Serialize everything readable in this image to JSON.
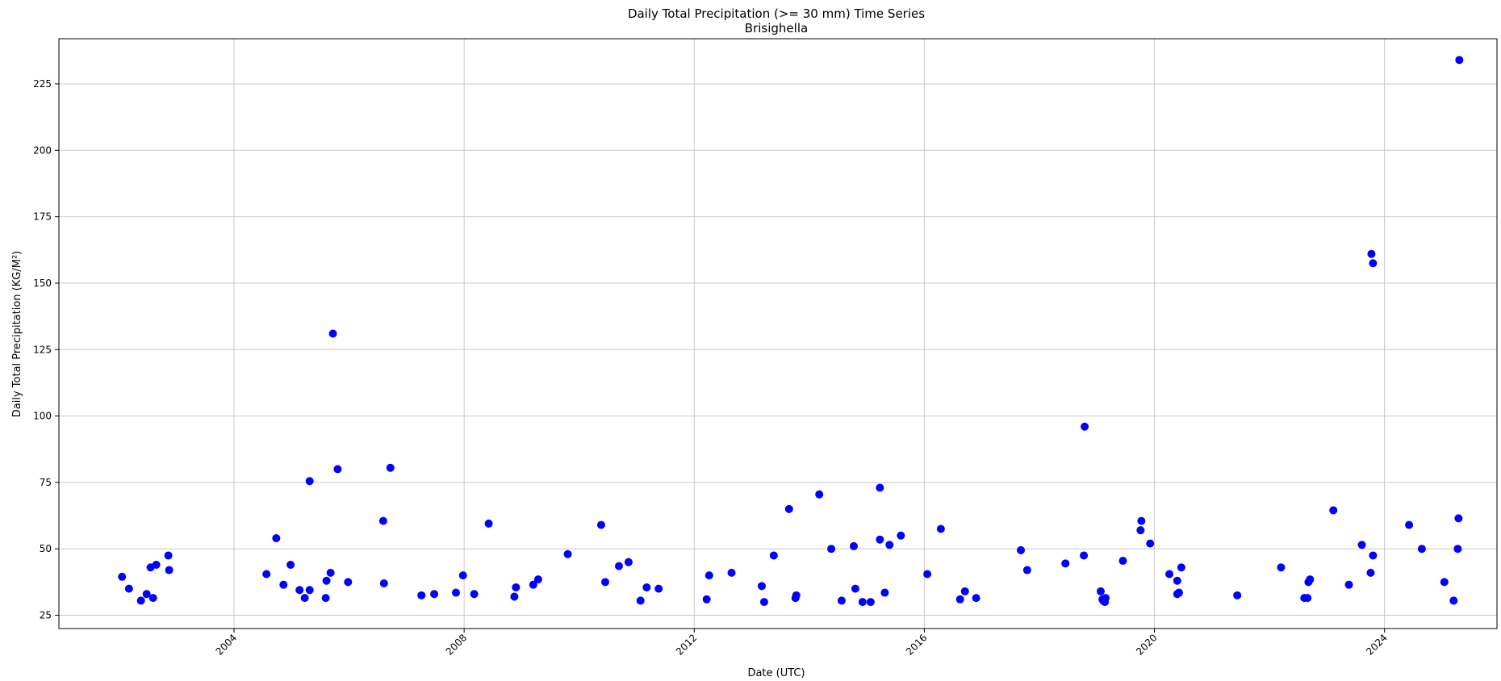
{
  "chart_data": {
    "type": "scatter",
    "title": "Daily Total Precipitation (>= 30 mm) Time Series",
    "subtitle": "Brisighella",
    "xlabel": "Date (UTC)",
    "ylabel": "Daily Total Precipitation (KG/M²)",
    "xlim": [
      "2000-12-15",
      "2025-12-15"
    ],
    "ylim": [
      20,
      242
    ],
    "xticks": [
      {
        "value": "2004-01-01",
        "label": "2004"
      },
      {
        "value": "2008-01-01",
        "label": "2008"
      },
      {
        "value": "2012-01-01",
        "label": "2012"
      },
      {
        "value": "2016-01-01",
        "label": "2016"
      },
      {
        "value": "2020-01-01",
        "label": "2020"
      },
      {
        "value": "2024-01-01",
        "label": "2024"
      }
    ],
    "yticks": [
      25,
      50,
      75,
      100,
      125,
      150,
      175,
      200,
      225
    ],
    "grid": true,
    "marker_color": "#0000ff",
    "points": [
      {
        "x": "2002-01-20",
        "y": 39.5
      },
      {
        "x": "2002-03-05",
        "y": 35.0
      },
      {
        "x": "2002-05-20",
        "y": 30.5
      },
      {
        "x": "2002-06-25",
        "y": 33.0
      },
      {
        "x": "2002-07-20",
        "y": 43.0
      },
      {
        "x": "2002-08-05",
        "y": 31.5
      },
      {
        "x": "2002-08-25",
        "y": 44.0
      },
      {
        "x": "2002-11-10",
        "y": 47.5
      },
      {
        "x": "2002-11-15",
        "y": 42.0
      },
      {
        "x": "2004-07-25",
        "y": 40.5
      },
      {
        "x": "2004-09-25",
        "y": 54.0
      },
      {
        "x": "2004-11-10",
        "y": 36.5
      },
      {
        "x": "2004-12-25",
        "y": 44.0
      },
      {
        "x": "2005-02-20",
        "y": 34.5
      },
      {
        "x": "2005-03-25",
        "y": 31.5
      },
      {
        "x": "2005-04-25",
        "y": 34.5
      },
      {
        "x": "2005-04-25",
        "y": 75.5
      },
      {
        "x": "2005-08-05",
        "y": 31.5
      },
      {
        "x": "2005-08-10",
        "y": 38.0
      },
      {
        "x": "2005-09-05",
        "y": 41.0
      },
      {
        "x": "2005-09-20",
        "y": 131.0
      },
      {
        "x": "2005-10-20",
        "y": 80.0
      },
      {
        "x": "2005-12-25",
        "y": 37.5
      },
      {
        "x": "2006-08-05",
        "y": 60.5
      },
      {
        "x": "2006-08-10",
        "y": 37.0
      },
      {
        "x": "2006-09-20",
        "y": 80.5
      },
      {
        "x": "2007-04-05",
        "y": 32.5
      },
      {
        "x": "2007-06-25",
        "y": 33.0
      },
      {
        "x": "2007-11-10",
        "y": 33.5
      },
      {
        "x": "2007-12-25",
        "y": 40.0
      },
      {
        "x": "2008-03-05",
        "y": 33.0
      },
      {
        "x": "2008-06-05",
        "y": 59.5
      },
      {
        "x": "2008-11-15",
        "y": 32.0
      },
      {
        "x": "2008-11-25",
        "y": 35.5
      },
      {
        "x": "2009-03-15",
        "y": 36.5
      },
      {
        "x": "2009-04-15",
        "y": 38.5
      },
      {
        "x": "2009-10-20",
        "y": 48.0
      },
      {
        "x": "2010-05-20",
        "y": 59.0
      },
      {
        "x": "2010-06-15",
        "y": 37.5
      },
      {
        "x": "2010-09-10",
        "y": 43.5
      },
      {
        "x": "2010-11-10",
        "y": 45.0
      },
      {
        "x": "2011-01-25",
        "y": 30.5
      },
      {
        "x": "2011-03-05",
        "y": 35.5
      },
      {
        "x": "2011-05-20",
        "y": 35.0
      },
      {
        "x": "2012-03-20",
        "y": 31.0
      },
      {
        "x": "2012-04-05",
        "y": 40.0
      },
      {
        "x": "2012-08-25",
        "y": 41.0
      },
      {
        "x": "2013-03-05",
        "y": 36.0
      },
      {
        "x": "2013-03-20",
        "y": 30.0
      },
      {
        "x": "2013-05-20",
        "y": 47.5
      },
      {
        "x": "2013-08-25",
        "y": 65.0
      },
      {
        "x": "2013-10-05",
        "y": 31.5
      },
      {
        "x": "2013-10-10",
        "y": 32.5
      },
      {
        "x": "2014-03-05",
        "y": 70.5
      },
      {
        "x": "2014-05-20",
        "y": 50.0
      },
      {
        "x": "2014-07-25",
        "y": 30.5
      },
      {
        "x": "2014-10-10",
        "y": 51.0
      },
      {
        "x": "2014-10-20",
        "y": 35.0
      },
      {
        "x": "2014-12-05",
        "y": 30.0
      },
      {
        "x": "2015-01-25",
        "y": 30.0
      },
      {
        "x": "2015-03-25",
        "y": 73.0
      },
      {
        "x": "2015-03-25",
        "y": 53.5
      },
      {
        "x": "2015-04-25",
        "y": 33.5
      },
      {
        "x": "2015-05-25",
        "y": 51.5
      },
      {
        "x": "2015-08-05",
        "y": 55.0
      },
      {
        "x": "2016-01-20",
        "y": 40.5
      },
      {
        "x": "2016-04-15",
        "y": 57.5
      },
      {
        "x": "2016-08-15",
        "y": 31.0
      },
      {
        "x": "2016-09-15",
        "y": 34.0
      },
      {
        "x": "2016-11-25",
        "y": 31.5
      },
      {
        "x": "2017-09-05",
        "y": 49.5
      },
      {
        "x": "2017-10-15",
        "y": 42.0
      },
      {
        "x": "2018-06-15",
        "y": 44.5
      },
      {
        "x": "2018-10-10",
        "y": 47.5
      },
      {
        "x": "2018-10-15",
        "y": 96.0
      },
      {
        "x": "2019-01-25",
        "y": 34.0
      },
      {
        "x": "2019-02-05",
        "y": 31.0
      },
      {
        "x": "2019-02-10",
        "y": 30.5
      },
      {
        "x": "2019-02-20",
        "y": 30.0
      },
      {
        "x": "2019-02-25",
        "y": 31.5
      },
      {
        "x": "2019-06-15",
        "y": 45.5
      },
      {
        "x": "2019-10-05",
        "y": 57.0
      },
      {
        "x": "2019-10-10",
        "y": 60.5
      },
      {
        "x": "2019-12-05",
        "y": 52.0
      },
      {
        "x": "2020-04-05",
        "y": 40.5
      },
      {
        "x": "2020-05-25",
        "y": 38.0
      },
      {
        "x": "2020-05-25",
        "y": 33.0
      },
      {
        "x": "2020-06-05",
        "y": 33.5
      },
      {
        "x": "2020-06-20",
        "y": 43.0
      },
      {
        "x": "2021-06-10",
        "y": 32.5
      },
      {
        "x": "2022-03-15",
        "y": 43.0
      },
      {
        "x": "2022-08-10",
        "y": 31.5
      },
      {
        "x": "2022-08-30",
        "y": 31.5
      },
      {
        "x": "2022-09-05",
        "y": 37.5
      },
      {
        "x": "2022-09-15",
        "y": 38.5
      },
      {
        "x": "2023-02-10",
        "y": 64.5
      },
      {
        "x": "2023-05-20",
        "y": 36.5
      },
      {
        "x": "2023-08-10",
        "y": 51.5
      },
      {
        "x": "2023-10-05",
        "y": 41.0
      },
      {
        "x": "2023-10-10",
        "y": 161.0
      },
      {
        "x": "2023-10-20",
        "y": 157.5
      },
      {
        "x": "2023-10-20",
        "y": 47.5
      },
      {
        "x": "2024-06-05",
        "y": 59.0
      },
      {
        "x": "2024-08-25",
        "y": 50.0
      },
      {
        "x": "2025-01-15",
        "y": 37.5
      },
      {
        "x": "2025-03-15",
        "y": 30.5
      },
      {
        "x": "2025-04-10",
        "y": 50.0
      },
      {
        "x": "2025-04-15",
        "y": 61.5
      },
      {
        "x": "2025-04-20",
        "y": 234.0
      }
    ]
  }
}
